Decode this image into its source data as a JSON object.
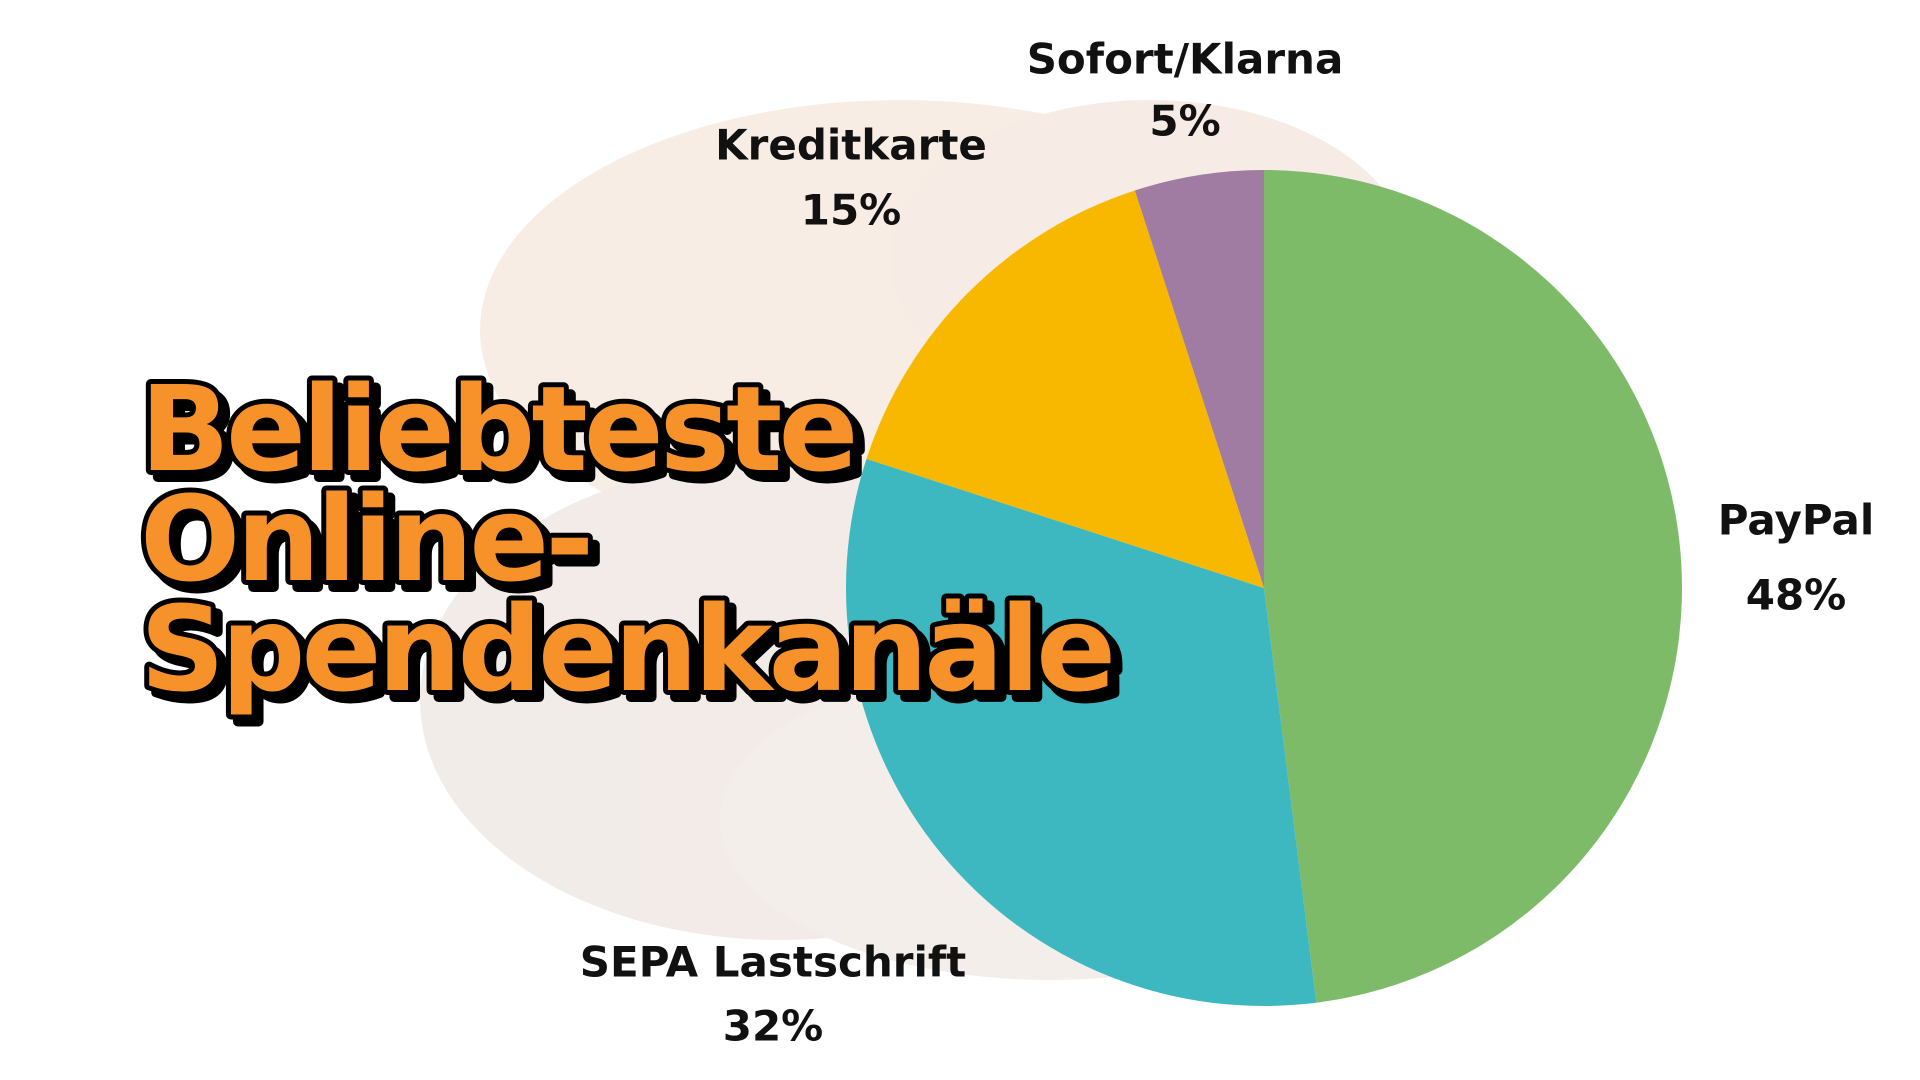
{
  "chart_data": {
    "type": "pie",
    "title_lines": [
      "Beliebteste",
      "Online-",
      "Spendenkanäle"
    ],
    "categories": [
      "PayPal",
      "SEPA Lastschrift",
      "Kreditkarte",
      "Sofort/Klarna"
    ],
    "values": [
      48,
      32,
      15,
      5
    ],
    "value_labels": [
      "48%",
      "32%",
      "15%",
      "5%"
    ],
    "colors": [
      "#7dbb69",
      "#3db8c0",
      "#f9b800",
      "#a07ba2"
    ],
    "start_angle": 0,
    "direction": "clockwise"
  }
}
